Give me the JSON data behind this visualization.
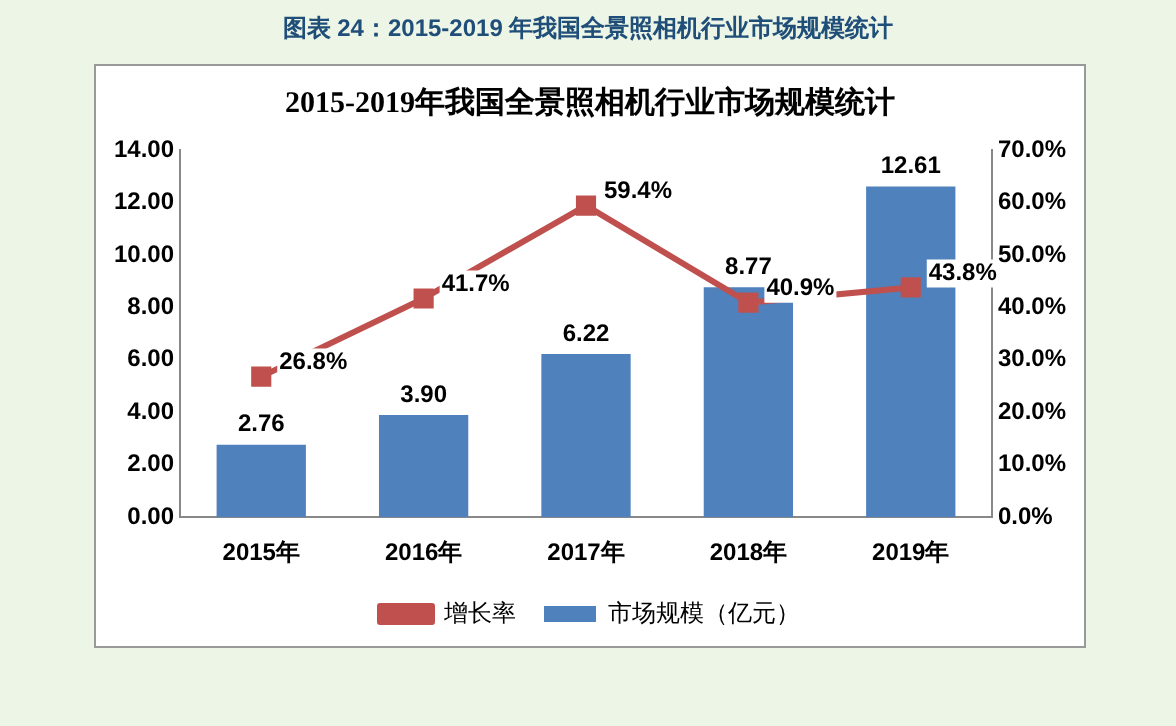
{
  "chart_data": {
    "type": "bar",
    "title": "图表 24：2015-2019 年我国全景照相机行业市场规模统计",
    "subtitle": "2015-2019年我国全景照相机行业市场规模统计",
    "categories": [
      "2015年",
      "2016年",
      "2017年",
      "2018年",
      "2019年"
    ],
    "series": [
      {
        "name": "市场规模（亿元）",
        "color": "#4f81bd",
        "values": [
          2.76,
          3.9,
          6.22,
          8.77,
          12.61
        ],
        "value_labels": [
          "2.76",
          "3.90",
          "6.22",
          "8.77",
          "12.61"
        ]
      },
      {
        "name": "增长率",
        "type": "line",
        "axis": "y2",
        "color": "#c0504d",
        "values": [
          26.8,
          41.7,
          59.4,
          40.9,
          43.8
        ],
        "value_labels": [
          "26.8%",
          "41.7%",
          "59.4%",
          "40.9%",
          "43.8%"
        ]
      }
    ],
    "ylim": [
      0,
      14
    ],
    "yticks": [
      {
        "value": 0,
        "label": "0.00"
      },
      {
        "value": 2,
        "label": "2.00"
      },
      {
        "value": 4,
        "label": "4.00"
      },
      {
        "value": 6,
        "label": "6.00"
      },
      {
        "value": 8,
        "label": "8.00"
      },
      {
        "value": 10,
        "label": "10.00"
      },
      {
        "value": 12,
        "label": "12.00"
      },
      {
        "value": 14,
        "label": "14.00"
      }
    ],
    "y2lim": [
      0,
      70
    ],
    "y2ticks": [
      {
        "value": 0,
        "label": "0.0%"
      },
      {
        "value": 10,
        "label": "10.0%"
      },
      {
        "value": 20,
        "label": "20.0%"
      },
      {
        "value": 30,
        "label": "30.0%"
      },
      {
        "value": 40,
        "label": "40.0%"
      },
      {
        "value": 50,
        "label": "50.0%"
      },
      {
        "value": 60,
        "label": "60.0%"
      },
      {
        "value": 70,
        "label": "70.0%"
      }
    ],
    "grid": false,
    "legend": "bottom",
    "marker": "square",
    "line_style": "solid"
  }
}
